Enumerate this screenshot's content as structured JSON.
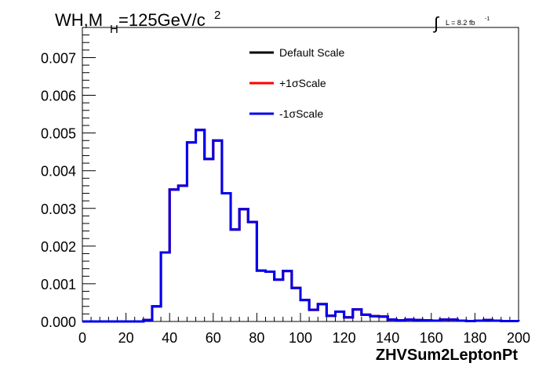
{
  "chart_data": {
    "type": "line",
    "title": {
      "prefix": "WH,M",
      "subscript": "H",
      "value": "=125GeV/c",
      "superscript": "2"
    },
    "luminosity": {
      "integral_sign": "∫",
      "text": "L = 8.2 fb",
      "superscript": "-1"
    },
    "xlabel": "ZHVSum2LeptonPt",
    "ylabel": "",
    "xlim": [
      0,
      200
    ],
    "ylim": [
      0,
      0.0078
    ],
    "x_ticks": [
      0,
      20,
      40,
      60,
      80,
      100,
      120,
      140,
      160,
      180,
      200
    ],
    "x_tick_labels": [
      "0",
      "20",
      "40",
      "60",
      "80",
      "100",
      "120",
      "140",
      "160",
      "180",
      "200"
    ],
    "y_ticks": [
      0,
      0.001,
      0.002,
      0.003,
      0.004,
      0.005,
      0.006,
      0.007
    ],
    "y_tick_labels": [
      "0.000",
      "0.001",
      "0.002",
      "0.003",
      "0.004",
      "0.005",
      "0.006",
      "0.007"
    ],
    "grid": false,
    "legend_position": "top-right",
    "bin_width": 4,
    "bin_edges_start": 0,
    "series": [
      {
        "name": "Default Scale",
        "color": "#000000",
        "values": [
          0,
          0,
          0,
          0,
          0,
          0,
          0,
          4e-05,
          0.0004,
          0.00183,
          0.0035,
          0.0036,
          0.00475,
          0.00508,
          0.00431,
          0.0048,
          0.0034,
          0.00244,
          0.00298,
          0.00264,
          0.00135,
          0.00132,
          0.00111,
          0.00134,
          0.00089,
          0.00057,
          0.00031,
          0.00046,
          0.00015,
          0.00026,
          0.00011,
          0.00032,
          0.00018,
          0.00014,
          0.00013,
          5e-05,
          3e-05,
          5e-05,
          4e-05,
          3e-05,
          2e-05,
          5e-05,
          5e-05,
          2e-05,
          1e-05,
          2e-05,
          4e-05,
          2e-05,
          1e-05,
          1e-05
        ]
      },
      {
        "name": "+1σScale",
        "color": "#ff0000",
        "values": [
          0,
          0,
          0,
          0,
          0,
          0,
          0,
          4e-05,
          0.0004,
          0.00183,
          0.0035,
          0.0036,
          0.00475,
          0.00508,
          0.00431,
          0.0048,
          0.0034,
          0.00244,
          0.00298,
          0.00264,
          0.00135,
          0.00132,
          0.00111,
          0.00134,
          0.00089,
          0.00057,
          0.00031,
          0.00046,
          0.00015,
          0.00026,
          0.00011,
          0.00032,
          0.00018,
          0.00014,
          0.00013,
          5e-05,
          3e-05,
          5e-05,
          4e-05,
          3e-05,
          2e-05,
          5e-05,
          5e-05,
          2e-05,
          1e-05,
          2e-05,
          4e-05,
          2e-05,
          1e-05,
          1e-05
        ]
      },
      {
        "name": "-1σScale",
        "color": "#0000ee",
        "values": [
          0,
          0,
          0,
          0,
          0,
          0,
          0,
          4e-05,
          0.0004,
          0.00183,
          0.0035,
          0.0036,
          0.00475,
          0.00508,
          0.00431,
          0.0048,
          0.0034,
          0.00244,
          0.00298,
          0.00264,
          0.00135,
          0.00132,
          0.00111,
          0.00134,
          0.00089,
          0.00057,
          0.00031,
          0.00046,
          0.00015,
          0.00026,
          0.00011,
          0.00032,
          0.00018,
          0.00014,
          0.00013,
          5e-05,
          3e-05,
          5e-05,
          4e-05,
          3e-05,
          2e-05,
          5e-05,
          5e-05,
          2e-05,
          1e-05,
          2e-05,
          4e-05,
          2e-05,
          1e-05,
          1e-05
        ]
      }
    ]
  }
}
